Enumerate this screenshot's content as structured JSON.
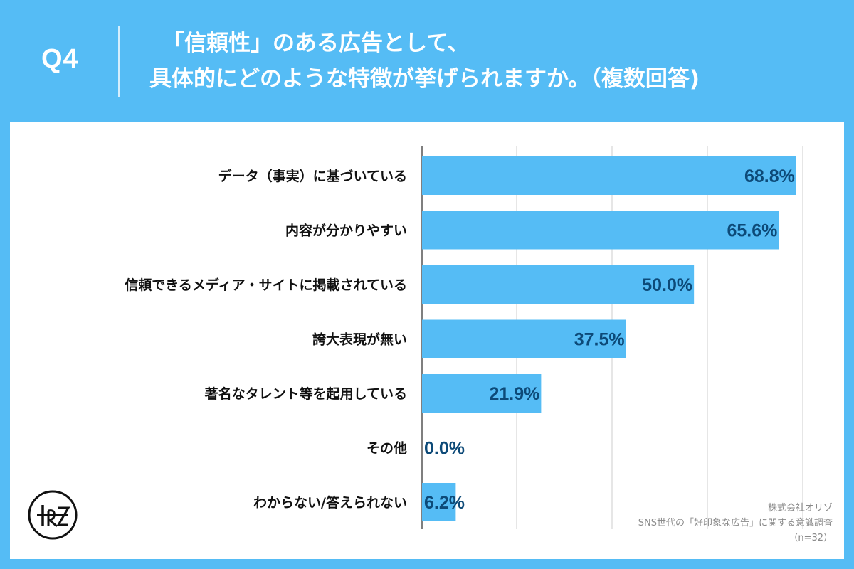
{
  "header": {
    "question_label": "Q4",
    "title_line1": "「信頼性」のある広告として、",
    "title_line2": "具体的にどのような特徴が挙げられますか。（複数回答)"
  },
  "chart_data": {
    "type": "bar",
    "orientation": "horizontal",
    "categories": [
      "データ（事実）に基づいている",
      "内容が分かりやすい",
      "信頼できるメディア・サイトに掲載されている",
      "誇大表現が無い",
      "著名なタレント等を起用している",
      "その他",
      "わからない/答えられない"
    ],
    "values": [
      68.8,
      65.6,
      50.0,
      37.5,
      21.9,
      0.0,
      6.2
    ],
    "value_labels": [
      "68.8%",
      "65.6%",
      "50.0%",
      "37.5%",
      "21.9%",
      "0.0%",
      "6.2%"
    ],
    "xlim": [
      0,
      70
    ],
    "grid": true,
    "bar_color": "#55bcf5",
    "label_color": "#0d4a78"
  },
  "footer": {
    "company": "株式会社オリゾ",
    "survey": "SNS世代の「好印象な広告」に関する意識調査",
    "sample": "（n=32）"
  },
  "colors": {
    "background": "#55bcf5",
    "panel": "#ffffff",
    "grid": "#cccccc"
  },
  "logo": {
    "icon": "orizo-logo-icon"
  }
}
